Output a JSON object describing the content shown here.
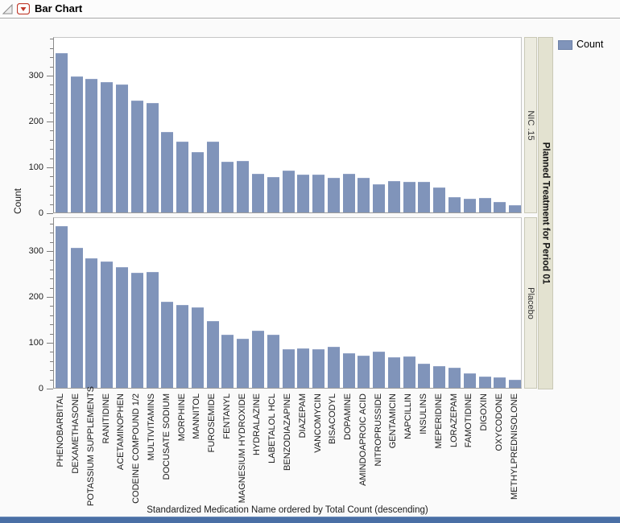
{
  "window": {
    "title": "Bar Chart"
  },
  "titlebar_icons": {
    "disclosure": "collapse-triangle",
    "menu": "red-dropdown-triangle-button"
  },
  "legend": {
    "label": "Count",
    "swatch_color": "#8094ba"
  },
  "strip": {
    "outer_label": "Planned Treatment for Period 01",
    "inner_colors": {
      "panel_bg": "#ecebdf",
      "outer_bg": "#e3e2d0"
    }
  },
  "chart_data": {
    "type": "bar",
    "title": "Bar Chart",
    "xlabel": "Standardized Medication Name ordered by Total Count (descending)",
    "ylabel": "Count",
    "ylim": [
      0,
      380
    ],
    "yticks": [
      0,
      100,
      200,
      300
    ],
    "minor_tick_step": 20,
    "grid": false,
    "legend_position": "top-right",
    "panel_variable": "Planned Treatment for Period 01",
    "bar_color": "#8094ba",
    "categories": [
      "PHENOBARBITAL",
      "DEXAMETHASONE",
      "POTASSIUM SUPPLEMENTS",
      "RANITIDINE",
      "ACETAMINOPHEN",
      "CODEINE COMPOUND 1/2",
      "MULTIVITAMINS",
      "DOCUSATE SODIUM",
      "MORPHINE",
      "MANNITOL",
      "FUROSEMIDE",
      "FENTANYL",
      "MAGNESIUM HYDROXIDE",
      "HYDRALAZINE",
      "LABETALOL HCL",
      "BENZODIAZAPINE",
      "DIAZEPAM",
      "VANCOMYCIN",
      "BISACODYL",
      "DOPAMINE",
      "AMINDOAPROIC ACID",
      "NITROPRUSSIDE",
      "GENTAMICIN",
      "NAPCILLIN",
      "INSULINS",
      "MEPERIDINE",
      "LORAZEPAM",
      "FAMOTIDINE",
      "DIGOXIN",
      "OXYCODONE",
      "METHYLPREDNISOLONE"
    ],
    "series": [
      {
        "name": "NIC .15",
        "values": [
          348,
          297,
          292,
          285,
          279,
          243,
          239,
          176,
          154,
          131,
          155,
          110,
          112,
          85,
          77,
          92,
          83,
          82,
          76,
          84,
          75,
          61,
          68,
          67,
          66,
          54,
          33,
          30,
          31,
          23,
          15
        ]
      },
      {
        "name": "Placebo",
        "values": [
          352,
          305,
          283,
          276,
          263,
          251,
          253,
          187,
          181,
          175,
          145,
          116,
          107,
          125,
          115,
          84,
          86,
          84,
          90,
          75,
          70,
          79,
          66,
          69,
          52,
          48,
          43,
          31,
          24,
          22,
          18
        ]
      }
    ]
  }
}
